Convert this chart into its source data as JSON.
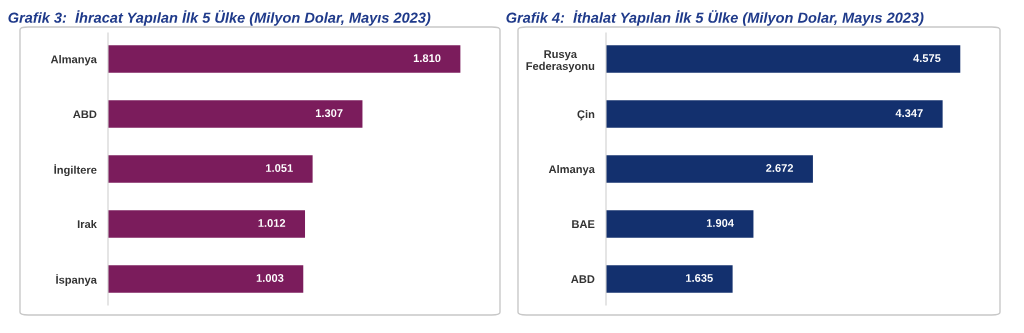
{
  "chart_data": [
    {
      "type": "bar",
      "orientation": "horizontal",
      "title": "Grafik 3:  İhracat Yapılan İlk 5 Ülke (Milyon Dolar, Mayıs 2023)",
      "categories": [
        "Almanya",
        "ABD",
        "İngiltere",
        "Irak",
        "İspanya"
      ],
      "values": [
        1810,
        1307,
        1051,
        1012,
        1003
      ],
      "value_labels": [
        "1.810",
        "1.307",
        "1.051",
        "1.012",
        "1.003"
      ],
      "color": "#7b1c5c",
      "legend": false
    },
    {
      "type": "bar",
      "orientation": "horizontal",
      "title": "Grafik 4:  İthalat Yapılan İlk 5 Ülke (Milyon Dolar, Mayıs 2023)",
      "categories": [
        "Rusya\nFederasyonu",
        "Çin",
        "Almanya",
        "BAE",
        "ABD"
      ],
      "values": [
        4575,
        4347,
        2672,
        1904,
        1635
      ],
      "value_labels": [
        "4.575",
        "4.347",
        "2.672",
        "1.904",
        "1.635"
      ],
      "color": "#13306e",
      "legend": false
    }
  ]
}
